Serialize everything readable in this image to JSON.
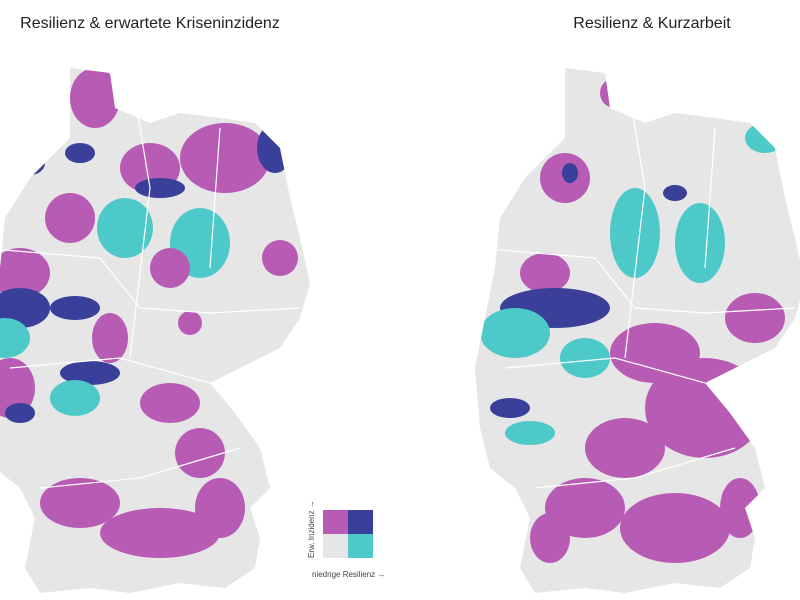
{
  "maps": [
    {
      "title": "Resilienz & erwartete Kriseninzidenz"
    },
    {
      "title": "Resilienz & Kurzarbeit"
    }
  ],
  "legend": {
    "y_label": "Erw. Inzidenz →",
    "x_label": "niedrige Resilienz →"
  }
}
